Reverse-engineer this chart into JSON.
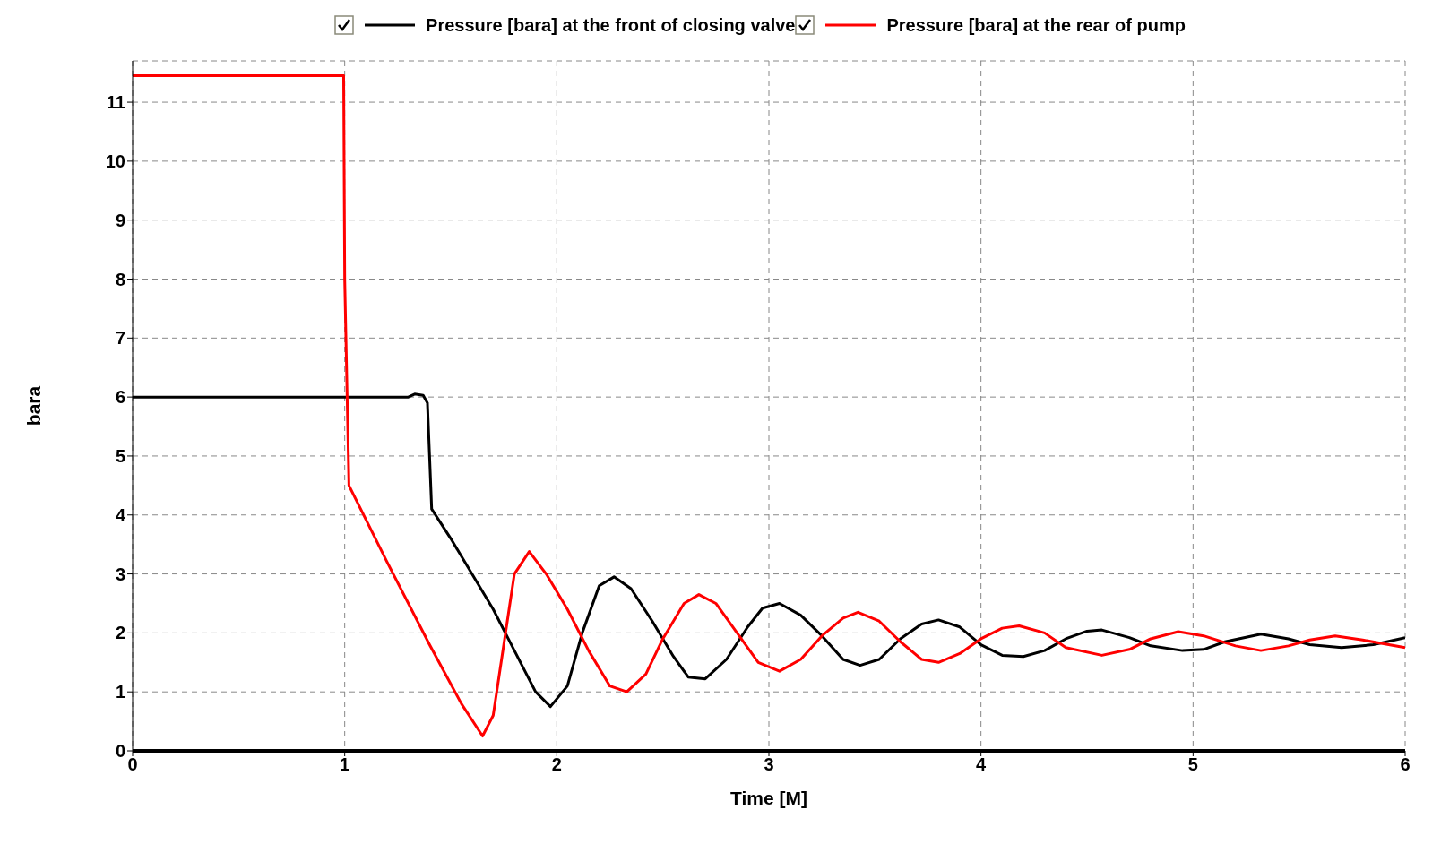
{
  "chart_data": {
    "type": "line",
    "xlabel": "Time [M]",
    "ylabel": "bara",
    "xlim": [
      0,
      6
    ],
    "xticks": [
      0,
      1,
      2,
      3,
      4,
      5,
      6
    ],
    "ylim": [
      0,
      11.7
    ],
    "yticks": [
      0,
      1,
      2,
      3,
      4,
      5,
      6,
      7,
      8,
      9,
      10,
      11
    ],
    "grid": true,
    "legend": "top",
    "marker": "none",
    "line_style": "solid",
    "series": [
      {
        "name": "Pressure [bara] at the front of closing valve",
        "color": "#000000",
        "x": [
          0,
          1.3,
          1.33,
          1.37,
          1.39,
          1.41,
          1.5,
          1.6,
          1.7,
          1.8,
          1.9,
          1.97,
          2.05,
          2.12,
          2.2,
          2.27,
          2.35,
          2.45,
          2.55,
          2.62,
          2.7,
          2.8,
          2.9,
          2.97,
          3.05,
          3.15,
          3.25,
          3.35,
          3.43,
          3.52,
          3.62,
          3.72,
          3.8,
          3.9,
          4.0,
          4.1,
          4.2,
          4.3,
          4.4,
          4.5,
          4.57,
          4.7,
          4.8,
          4.95,
          5.05,
          5.15,
          5.32,
          5.45,
          5.55,
          5.7,
          5.85,
          6
        ],
        "values": [
          6,
          6,
          6.05,
          6.03,
          5.9,
          4.1,
          3.6,
          3.0,
          2.4,
          1.7,
          1.0,
          0.75,
          1.1,
          2.0,
          2.8,
          2.95,
          2.75,
          2.2,
          1.6,
          1.25,
          1.22,
          1.55,
          2.1,
          2.42,
          2.5,
          2.3,
          1.95,
          1.55,
          1.45,
          1.55,
          1.9,
          2.15,
          2.22,
          2.1,
          1.8,
          1.62,
          1.6,
          1.7,
          1.9,
          2.03,
          2.05,
          1.92,
          1.78,
          1.7,
          1.72,
          1.85,
          1.98,
          1.9,
          1.8,
          1.75,
          1.8,
          1.92
        ]
      },
      {
        "name": "Pressure [bara] at the rear of pump",
        "color": "#ff0000",
        "x": [
          0,
          0.995,
          1.0,
          1.02,
          1.2,
          1.4,
          1.55,
          1.65,
          1.7,
          1.75,
          1.8,
          1.87,
          1.95,
          2.05,
          2.15,
          2.25,
          2.33,
          2.42,
          2.5,
          2.6,
          2.67,
          2.75,
          2.85,
          2.95,
          3.05,
          3.15,
          3.25,
          3.35,
          3.42,
          3.52,
          3.62,
          3.72,
          3.8,
          3.9,
          4.0,
          4.1,
          4.18,
          4.3,
          4.4,
          4.57,
          4.7,
          4.8,
          4.93,
          5.05,
          5.2,
          5.32,
          5.45,
          5.55,
          5.67,
          5.8,
          6
        ],
        "values": [
          11.45,
          11.45,
          8,
          4.5,
          3.2,
          1.8,
          0.8,
          0.25,
          0.6,
          1.8,
          3.0,
          3.38,
          3.0,
          2.4,
          1.7,
          1.1,
          1.0,
          1.3,
          1.9,
          2.5,
          2.65,
          2.5,
          2.0,
          1.5,
          1.35,
          1.55,
          1.95,
          2.25,
          2.35,
          2.2,
          1.85,
          1.55,
          1.5,
          1.65,
          1.9,
          2.08,
          2.12,
          2.0,
          1.75,
          1.62,
          1.72,
          1.9,
          2.02,
          1.95,
          1.78,
          1.7,
          1.78,
          1.88,
          1.95,
          1.88,
          1.75
        ]
      }
    ]
  }
}
